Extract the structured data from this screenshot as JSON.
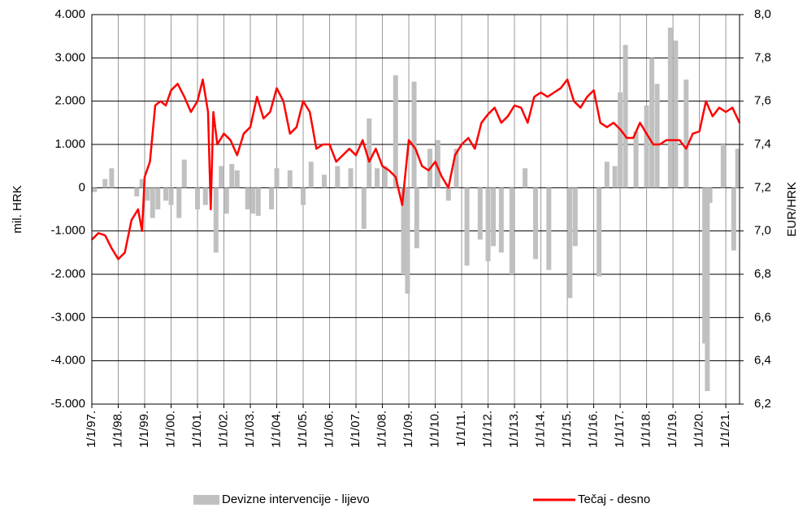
{
  "chart_data": {
    "type": "bar-line",
    "ylabel": "mil. HRK",
    "y2label": "EUR/HRK",
    "xlim": [
      1997,
      2021.52
    ],
    "xticks": [
      {
        "value": 1997,
        "label": "1/1/97."
      },
      {
        "value": 1998,
        "label": "1/1/98."
      },
      {
        "value": 1999,
        "label": "1/1/99."
      },
      {
        "value": 2000,
        "label": "1/1/00."
      },
      {
        "value": 2001,
        "label": "1/1/01."
      },
      {
        "value": 2002,
        "label": "1/1/02."
      },
      {
        "value": 2003,
        "label": "1/1/03."
      },
      {
        "value": 2004,
        "label": "1/1/04."
      },
      {
        "value": 2005,
        "label": "1/1/05."
      },
      {
        "value": 2006,
        "label": "1/1/06."
      },
      {
        "value": 2007,
        "label": "1/1/07."
      },
      {
        "value": 2008,
        "label": "1/1/08."
      },
      {
        "value": 2009,
        "label": "1/1/09."
      },
      {
        "value": 2010,
        "label": "1/1/10."
      },
      {
        "value": 2011,
        "label": "1/1/11."
      },
      {
        "value": 2012,
        "label": "1/1/12."
      },
      {
        "value": 2013,
        "label": "1/1/13."
      },
      {
        "value": 2014,
        "label": "1/1/14."
      },
      {
        "value": 2015,
        "label": "1/1/15."
      },
      {
        "value": 2016,
        "label": "1/1/16."
      },
      {
        "value": 2017,
        "label": "1/1/17."
      },
      {
        "value": 2018,
        "label": "1/1/18."
      },
      {
        "value": 2019,
        "label": "1/1/19."
      },
      {
        "value": 2020,
        "label": "1/1/20."
      },
      {
        "value": 2021,
        "label": "1/1/21."
      }
    ],
    "ylim": [
      -5000,
      4000
    ],
    "yticks": [
      {
        "value": 4000,
        "label": "4.000"
      },
      {
        "value": 3000,
        "label": "3.000"
      },
      {
        "value": 2000,
        "label": "2.000"
      },
      {
        "value": 1000,
        "label": "1.000"
      },
      0,
      {
        "value": -1000,
        "label": "-1.000"
      },
      {
        "value": -2000,
        "label": "-2.000"
      },
      {
        "value": -3000,
        "label": "-3.000"
      },
      {
        "value": -4000,
        "label": "-4.000"
      },
      {
        "value": -5000,
        "label": "-5.000"
      }
    ],
    "y2lim": [
      6.2,
      8.0
    ],
    "y2ticks": [
      {
        "value": 8.0,
        "label": "8,0"
      },
      {
        "value": 7.8,
        "label": "7,8"
      },
      {
        "value": 7.6,
        "label": "7,6"
      },
      {
        "value": 7.4,
        "label": "7,4"
      },
      {
        "value": 7.2,
        "label": "7,2"
      },
      {
        "value": 7.0,
        "label": "7,0"
      },
      {
        "value": 6.8,
        "label": "6,8"
      },
      {
        "value": 6.6,
        "label": "6,6"
      },
      {
        "value": 6.4,
        "label": "6,4"
      },
      {
        "value": 6.2,
        "label": "6,2"
      }
    ],
    "grid": true,
    "series": [
      {
        "name": "Devizne intervencije - lijevo",
        "type": "bar",
        "color": "#c0c0c0",
        "x": [
          1997.1,
          1997.5,
          1997.75,
          1998.7,
          1998.9,
          1999.1,
          1999.3,
          1999.5,
          1999.8,
          2000.0,
          2000.3,
          2000.5,
          2001.0,
          2001.3,
          2001.7,
          2001.9,
          2002.1,
          2002.3,
          2002.5,
          2002.9,
          2003.1,
          2003.3,
          2003.8,
          2004.0,
          2004.5,
          2005.0,
          2005.3,
          2005.8,
          2006.3,
          2006.8,
          2007.3,
          2007.5,
          2007.8,
          2008.1,
          2008.5,
          2008.8,
          2008.95,
          2009.2,
          2009.3,
          2009.8,
          2010.1,
          2010.5,
          2010.8,
          2011.2,
          2011.7,
          2012.0,
          2012.2,
          2012.5,
          2012.9,
          2013.4,
          2013.8,
          2014.3,
          2015.1,
          2015.3,
          2016.2,
          2016.5,
          2016.8,
          2017.0,
          2017.2,
          2017.6,
          2018.0,
          2018.2,
          2018.4,
          2018.9,
          2019.1,
          2019.5,
          2020.2,
          2020.3,
          2020.4,
          2020.9,
          2021.3,
          2021.45
        ],
        "values": [
          -100,
          200,
          450,
          -200,
          200,
          -300,
          -700,
          -500,
          -300,
          -400,
          -700,
          650,
          -500,
          -400,
          -1500,
          500,
          -600,
          550,
          400,
          -500,
          -600,
          -650,
          -500,
          450,
          400,
          -400,
          600,
          300,
          500,
          450,
          -950,
          1600,
          450,
          500,
          2600,
          -2000,
          -2450,
          2450,
          -1400,
          900,
          1100,
          -300,
          900,
          -1800,
          -1200,
          -1700,
          -1350,
          -1500,
          -2000,
          450,
          -1650,
          -1900,
          -2550,
          -1350,
          -2050,
          600,
          500,
          2200,
          3300,
          1300,
          1900,
          3000,
          2400,
          3700,
          3400,
          2500,
          -3600,
          -4700,
          -350,
          1000,
          -1450,
          900
        ]
      },
      {
        "name": "Tečaj - desno",
        "type": "line",
        "axis": "y2",
        "color": "#ff0000",
        "x": [
          1997.0,
          1997.25,
          1997.5,
          1997.75,
          1998.0,
          1998.25,
          1998.5,
          1998.75,
          1998.9,
          1999.0,
          1999.2,
          1999.4,
          1999.6,
          1999.8,
          2000.0,
          2000.25,
          2000.5,
          2000.75,
          2001.0,
          2001.2,
          2001.4,
          2001.5,
          2001.6,
          2001.75,
          2002.0,
          2002.25,
          2002.5,
          2002.75,
          2003.0,
          2003.25,
          2003.5,
          2003.75,
          2004.0,
          2004.25,
          2004.5,
          2004.75,
          2005.0,
          2005.25,
          2005.5,
          2005.75,
          2006.0,
          2006.25,
          2006.5,
          2006.75,
          2007.0,
          2007.25,
          2007.5,
          2007.75,
          2008.0,
          2008.25,
          2008.5,
          2008.75,
          2009.0,
          2009.25,
          2009.5,
          2009.75,
          2010.0,
          2010.25,
          2010.5,
          2010.75,
          2011.0,
          2011.25,
          2011.5,
          2011.75,
          2012.0,
          2012.25,
          2012.5,
          2012.75,
          2013.0,
          2013.25,
          2013.5,
          2013.75,
          2014.0,
          2014.25,
          2014.5,
          2014.75,
          2015.0,
          2015.25,
          2015.5,
          2015.75,
          2016.0,
          2016.25,
          2016.5,
          2016.75,
          2017.0,
          2017.25,
          2017.5,
          2017.75,
          2018.0,
          2018.25,
          2018.5,
          2018.75,
          2019.0,
          2019.25,
          2019.5,
          2019.75,
          2020.0,
          2020.25,
          2020.5,
          2020.75,
          2021.0,
          2021.25,
          2021.52
        ],
        "values": [
          6.96,
          6.99,
          6.98,
          6.92,
          6.87,
          6.9,
          7.05,
          7.1,
          7.0,
          7.25,
          7.32,
          7.58,
          7.6,
          7.58,
          7.65,
          7.68,
          7.62,
          7.55,
          7.6,
          7.7,
          7.55,
          7.1,
          7.55,
          7.4,
          7.45,
          7.42,
          7.35,
          7.45,
          7.48,
          7.62,
          7.52,
          7.55,
          7.66,
          7.6,
          7.45,
          7.48,
          7.6,
          7.55,
          7.38,
          7.4,
          7.4,
          7.32,
          7.35,
          7.38,
          7.35,
          7.42,
          7.32,
          7.38,
          7.3,
          7.28,
          7.25,
          7.12,
          7.42,
          7.38,
          7.3,
          7.28,
          7.32,
          7.25,
          7.2,
          7.35,
          7.4,
          7.43,
          7.38,
          7.5,
          7.54,
          7.57,
          7.5,
          7.53,
          7.58,
          7.57,
          7.5,
          7.62,
          7.64,
          7.62,
          7.64,
          7.66,
          7.7,
          7.6,
          7.57,
          7.62,
          7.65,
          7.5,
          7.48,
          7.5,
          7.47,
          7.43,
          7.43,
          7.5,
          7.45,
          7.4,
          7.4,
          7.42,
          7.42,
          7.42,
          7.38,
          7.45,
          7.46,
          7.6,
          7.53,
          7.57,
          7.55,
          7.57,
          7.5
        ]
      }
    ]
  }
}
